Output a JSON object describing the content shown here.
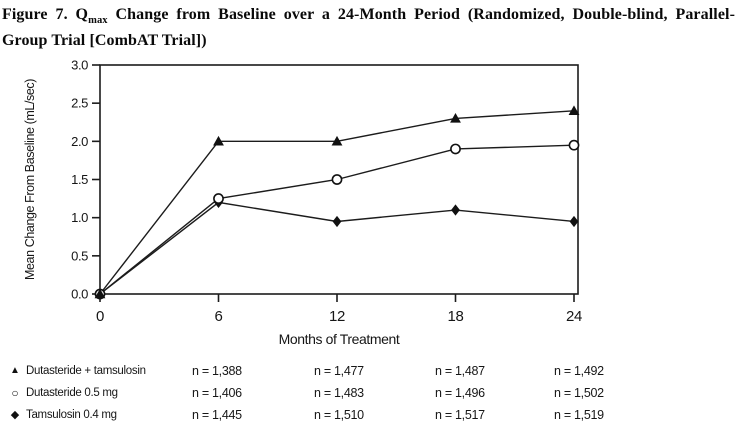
{
  "caption": {
    "part1": "Figure 7. Q",
    "subscript": "max",
    "part2": " Change from Baseline over a 24-Month Period (Randomized, Double-blind, Parallel-Group Trial [CombAT Trial])"
  },
  "chart_data": {
    "type": "line",
    "x": [
      0,
      6,
      12,
      18,
      24
    ],
    "xlim": [
      0,
      24
    ],
    "ylim": [
      0.0,
      3.0
    ],
    "ytick_step": 0.5,
    "ytick_labels": [
      "0.0",
      "0.5",
      "1.0",
      "1.5",
      "2.0",
      "2.5",
      "3.0"
    ],
    "xticks": [
      0,
      6,
      12,
      18,
      24
    ],
    "xlabel": "Months of Treatment",
    "ylabel": "Mean Change From Baseline (mL/sec)",
    "grid": false,
    "line_color": "#1c1c1c",
    "legend_position": "bottom-table",
    "series": [
      {
        "name": "Dutasteride + tamsulosin",
        "marker": "triangle-filled",
        "marker_glyph": "▲",
        "values": [
          0.0,
          2.0,
          2.0,
          2.3,
          2.4
        ],
        "n_labels": [
          "n = 1,388",
          "n = 1,477",
          "n = 1,487",
          "n = 1,492"
        ]
      },
      {
        "name": "Dutasteride 0.5 mg",
        "marker": "circle-open",
        "marker_glyph": "○",
        "values": [
          0.0,
          1.25,
          1.5,
          1.9,
          1.95
        ],
        "n_labels": [
          "n = 1,406",
          "n = 1,483",
          "n = 1,496",
          "n = 1,502"
        ]
      },
      {
        "name": "Tamsulosin 0.4 mg",
        "marker": "diamond-filled",
        "marker_glyph": "◆",
        "values": [
          0.0,
          1.2,
          0.95,
          1.1,
          0.95
        ],
        "n_labels": [
          "n = 1,445",
          "n = 1,510",
          "n = 1,517",
          "n = 1,519"
        ]
      }
    ]
  }
}
